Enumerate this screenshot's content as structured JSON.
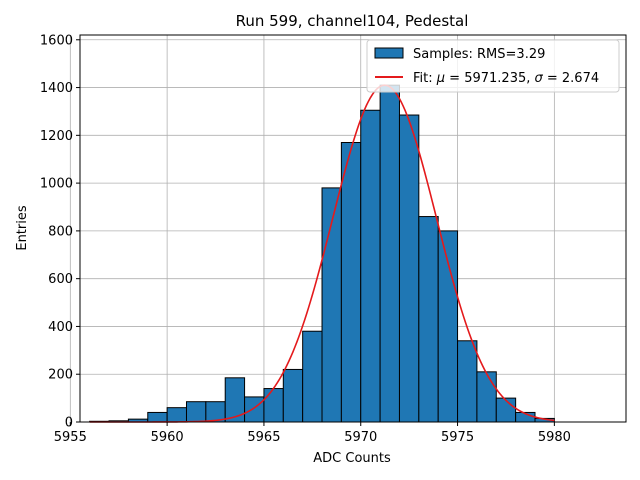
{
  "chart_data": {
    "type": "bar",
    "title": "Run 599, channel104, Pedestal",
    "xlabel": "ADC Counts",
    "ylabel": "Entries",
    "xlim": [
      5955.5,
      5983.7
    ],
    "ylim": [
      0,
      1620
    ],
    "xticks": [
      5955,
      5960,
      5965,
      5970,
      5975,
      5980
    ],
    "yticks": [
      0,
      200,
      400,
      600,
      800,
      1000,
      1200,
      1400,
      1600
    ],
    "grid": true,
    "legend_position": "top-right",
    "series": [
      {
        "name": "Samples: RMS=3.29",
        "kind": "histogram",
        "color": "#1f77b4",
        "edgecolor": "#000000",
        "bins": [
          {
            "x0": 5956.0,
            "x1": 5957.0,
            "count": 3
          },
          {
            "x0": 5957.0,
            "x1": 5958.0,
            "count": 5
          },
          {
            "x0": 5958.0,
            "x1": 5959.0,
            "count": 12
          },
          {
            "x0": 5959.0,
            "x1": 5960.0,
            "count": 40
          },
          {
            "x0": 5960.0,
            "x1": 5961.0,
            "count": 60
          },
          {
            "x0": 5961.0,
            "x1": 5962.0,
            "count": 85
          },
          {
            "x0": 5962.0,
            "x1": 5963.0,
            "count": 85
          },
          {
            "x0": 5963.0,
            "x1": 5964.0,
            "count": 185
          },
          {
            "x0": 5964.0,
            "x1": 5965.0,
            "count": 105
          },
          {
            "x0": 5965.0,
            "x1": 5966.0,
            "count": 140
          },
          {
            "x0": 5966.0,
            "x1": 5967.0,
            "count": 220
          },
          {
            "x0": 5967.0,
            "x1": 5968.0,
            "count": 380
          },
          {
            "x0": 5968.0,
            "x1": 5969.0,
            "count": 980
          },
          {
            "x0": 5969.0,
            "x1": 5970.0,
            "count": 1170
          },
          {
            "x0": 5970.0,
            "x1": 5971.0,
            "count": 1305
          },
          {
            "x0": 5971.0,
            "x1": 5972.0,
            "count": 1410
          },
          {
            "x0": 5972.0,
            "x1": 5973.0,
            "count": 1285
          },
          {
            "x0": 5973.0,
            "x1": 5974.0,
            "count": 860
          },
          {
            "x0": 5974.0,
            "x1": 5975.0,
            "count": 800
          },
          {
            "x0": 5975.0,
            "x1": 5976.0,
            "count": 340
          },
          {
            "x0": 5976.0,
            "x1": 5977.0,
            "count": 210
          },
          {
            "x0": 5977.0,
            "x1": 5978.0,
            "count": 100
          },
          {
            "x0": 5978.0,
            "x1": 5979.0,
            "count": 40
          },
          {
            "x0": 5979.0,
            "x1": 5980.0,
            "count": 15
          }
        ]
      },
      {
        "name": "Fit: μ = 5971.235, σ = 2.674",
        "kind": "gaussian-fit",
        "color": "#e41a1c",
        "mu": 5971.235,
        "sigma": 2.674,
        "amplitude": 1410,
        "x_range": [
          5956.0,
          5980.0
        ]
      }
    ],
    "legend": {
      "hist_label": "Samples: RMS=3.29",
      "fit_label_prefix": "Fit: ",
      "fit_mu_symbol": "μ",
      "fit_mu_value": " = 5971.235, ",
      "fit_sigma_symbol": "σ",
      "fit_sigma_value": " = 2.674"
    }
  }
}
